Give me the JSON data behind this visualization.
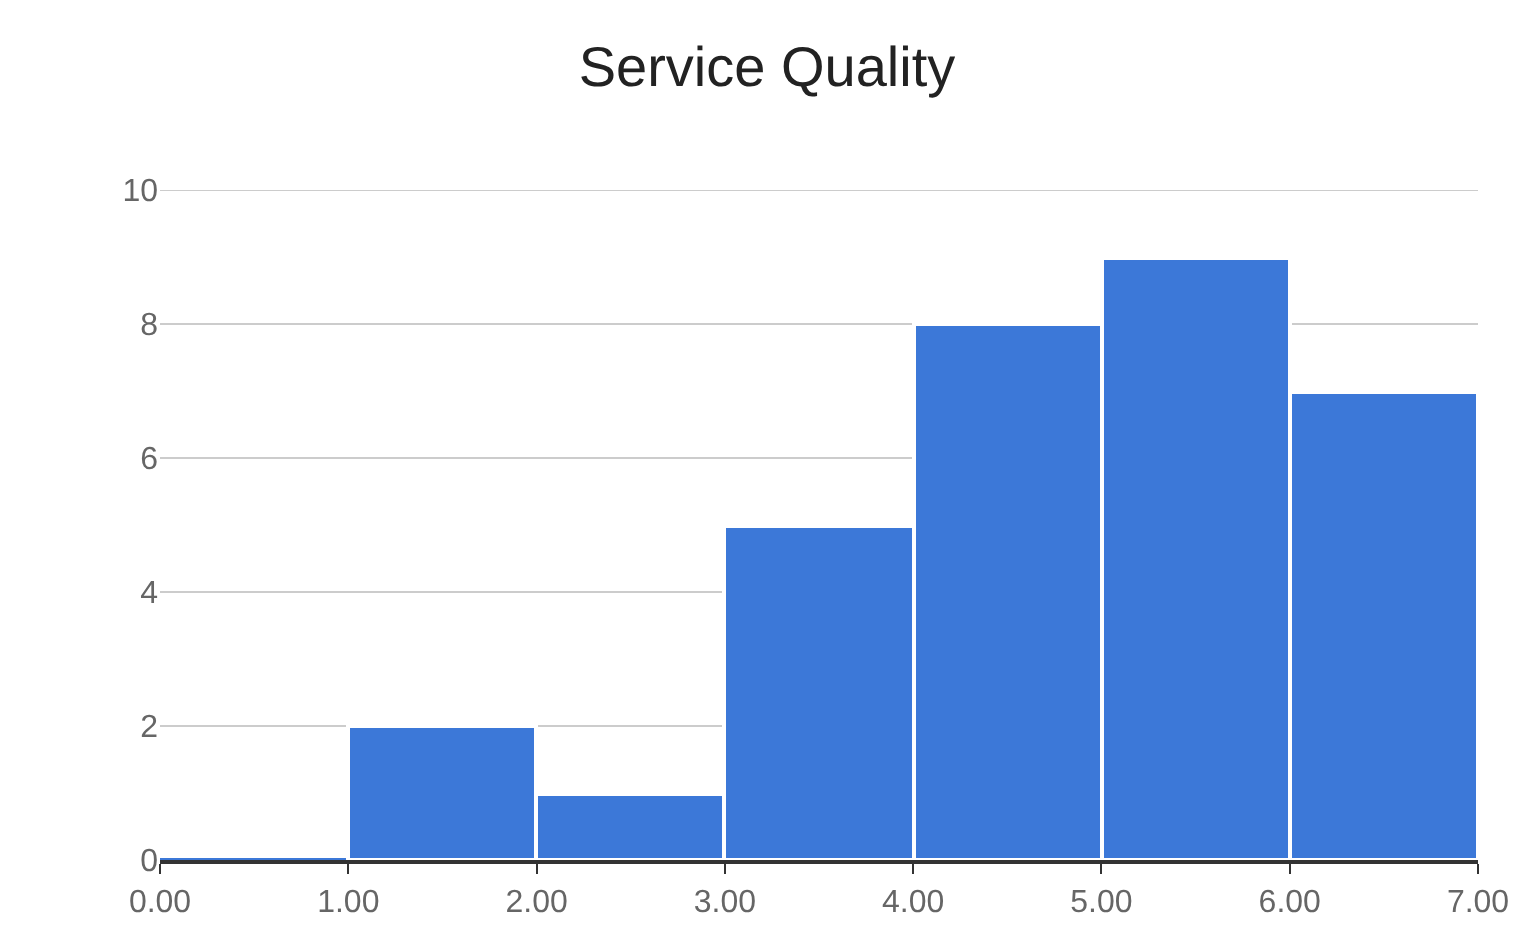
{
  "chart_data": {
    "type": "histogram",
    "title": "Service Quality",
    "bins": [
      0,
      1,
      2,
      3,
      4,
      5,
      6,
      7
    ],
    "values": [
      0,
      2,
      1,
      5,
      8,
      9,
      7
    ],
    "color": "#3c78d8",
    "xlim": [
      0,
      7
    ],
    "xticks": [
      {
        "value": 0,
        "label": "0.00"
      },
      {
        "value": 1,
        "label": "1.00"
      },
      {
        "value": 2,
        "label": "2.00"
      },
      {
        "value": 3,
        "label": "3.00"
      },
      {
        "value": 4,
        "label": "4.00"
      },
      {
        "value": 5,
        "label": "5.00"
      },
      {
        "value": 6,
        "label": "6.00"
      },
      {
        "value": 7,
        "label": "7.00"
      }
    ],
    "ylim": [
      0,
      10
    ],
    "yticks": [
      0,
      2,
      4,
      6,
      8,
      10
    ],
    "grid": "y"
  }
}
